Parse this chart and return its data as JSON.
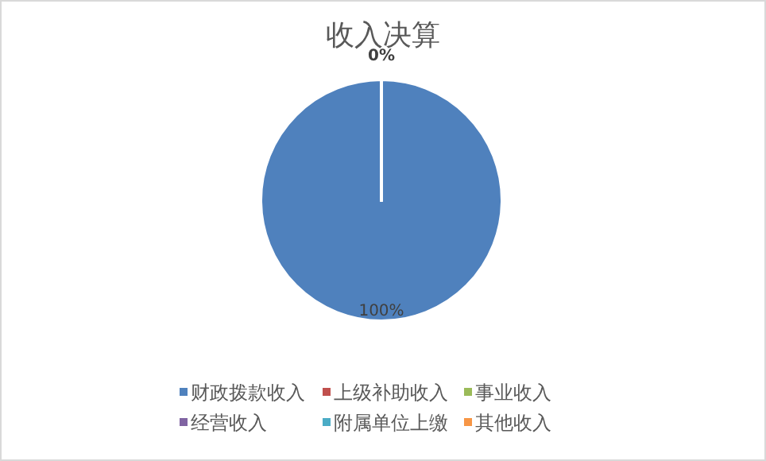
{
  "chart_data": {
    "type": "pie",
    "title": "收入决算",
    "categories": [
      "财政拨款收入",
      "上级补助收入",
      "事业收入",
      "经营收入",
      "附属单位上缴",
      "其他收入"
    ],
    "values": [
      100,
      0,
      0,
      0,
      0,
      0
    ],
    "value_labels": [
      "100%",
      "0%",
      null,
      null,
      null,
      null
    ],
    "colors": [
      "#4f81bd",
      "#c0504d",
      "#9bbb59",
      "#8064a2",
      "#4bacc6",
      "#f79646"
    ],
    "legend": "bottom"
  }
}
